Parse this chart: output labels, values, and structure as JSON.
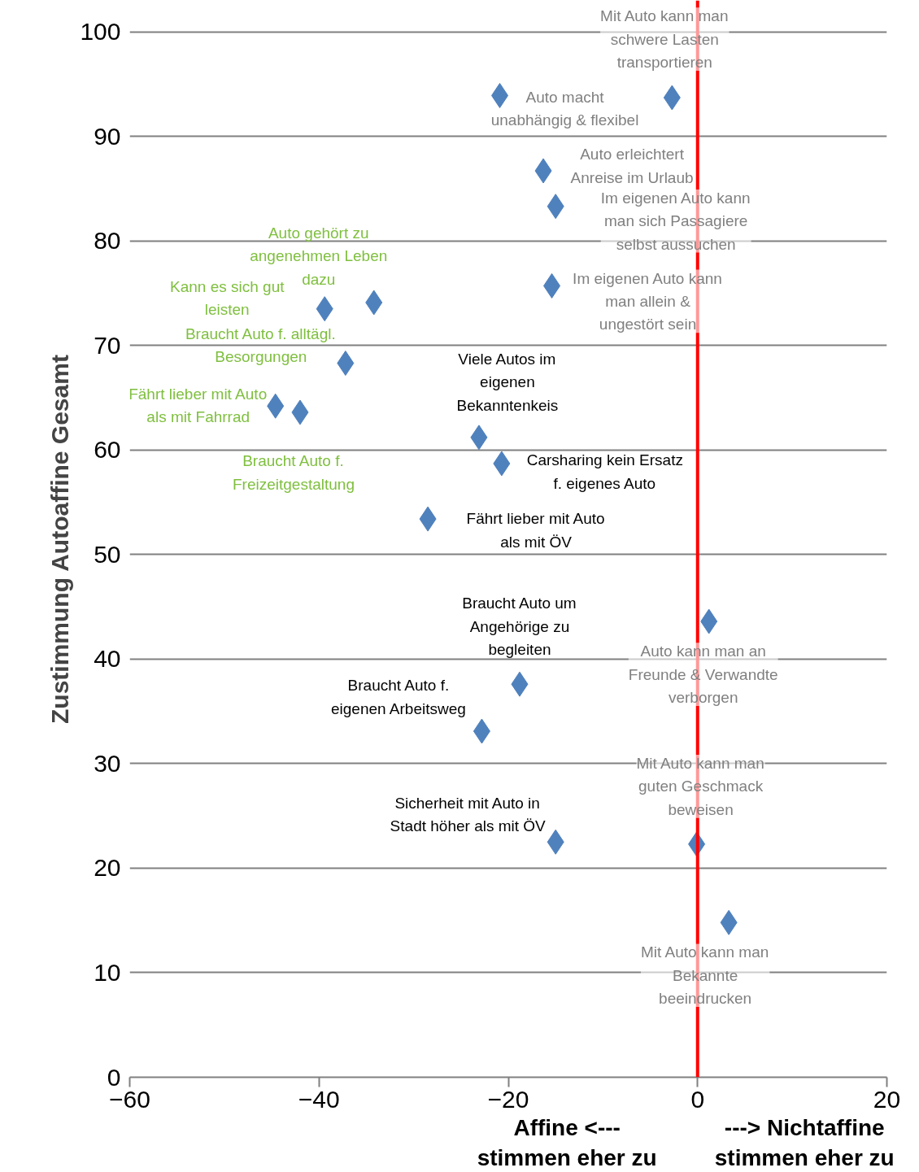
{
  "chart_data": {
    "type": "scatter",
    "ylabel": "Zustimmung Autoaffine Gesamt",
    "x": [
      -20.9,
      -2.7,
      -16.3,
      -15.0,
      -15.4,
      -34.2,
      -39.4,
      -37.2,
      -44.6,
      -42.0,
      -23.1,
      -20.7,
      -28.5,
      1.2,
      -18.8,
      -22.8,
      -15.0,
      -0.1,
      3.3
    ],
    "values": [
      93.9,
      93.7,
      86.7,
      83.3,
      75.7,
      74.1,
      73.5,
      68.3,
      64.2,
      63.6,
      61.2,
      58.7,
      53.4,
      43.6,
      37.6,
      33.1,
      22.5,
      22.3,
      14.8
    ],
    "color": "#4f81bd",
    "marker": "diamond",
    "xlim": [
      -60,
      20
    ],
    "xticks": [
      -60,
      -40,
      -20,
      0,
      20
    ],
    "ylim": [
      0,
      103
    ],
    "yticks": [
      0,
      10,
      20,
      30,
      40,
      50,
      60,
      70,
      80,
      90,
      100
    ],
    "grid": "y",
    "ref_lines": [
      {
        "axis": "x",
        "value": 0,
        "label": null,
        "color": "#ff0000"
      }
    ],
    "annotations": [
      "Affine <---\nstimmen eher zu",
      "---> Nichtaffine\nstimmen eher zu",
      {
        "text": "Mit Auto kann man\nschwere Lasten\ntransportieren",
        "x": -2.7,
        "y": 93.7
      },
      {
        "text": "Auto macht\nunabhängig & flexibel",
        "x": -20.9,
        "y": 93.9
      },
      {
        "text": "Auto erleichtert\nAnreise im Urlaub",
        "x": -16.3,
        "y": 86.7
      },
      {
        "text": "Im eigenen Auto kann\nman sich Passagiere\nselbst aussuchen",
        "x": -15.0,
        "y": 83.3
      },
      {
        "text": "Im eigenen Auto kann\nman allein &\nungestört sein",
        "x": -15.4,
        "y": 75.7
      },
      {
        "text": "Auto gehört zu\nangenehmen Leben\ndazu",
        "x": -34.2,
        "y": 74.1
      },
      {
        "text": "Kann es sich gut\nleisten",
        "x": -39.4,
        "y": 73.5
      },
      {
        "text": "Braucht Auto f. alltägl.\nBesorgungen",
        "x": -37.2,
        "y": 68.3
      },
      {
        "text": "Fährt lieber mit Auto\nals mit Fahrrad",
        "x": -44.6,
        "y": 64.2
      },
      {
        "text": "Braucht Auto f.\nFreizeitgestaltung",
        "x": -42.0,
        "y": 63.6
      },
      {
        "text": "Viele Autos im\neigenen\nBekanntenkeis",
        "x": -23.1,
        "y": 61.2
      },
      {
        "text": "Carsharing kein Ersatz\nf. eigenes Auto",
        "x": -20.7,
        "y": 58.7
      },
      {
        "text": "Fährt lieber mit Auto\nals mit ÖV",
        "x": -28.5,
        "y": 53.4
      },
      {
        "text": "Braucht Auto um\nAngehörige zu\nbegleiten",
        "x": -18.8,
        "y": 37.6
      },
      {
        "text": "Braucht Auto f.\neigenen Arbeitsweg",
        "x": -22.8,
        "y": 33.1
      },
      {
        "text": "Sicherheit mit Auto in\nStadt höher als mit ÖV",
        "x": -15.0,
        "y": 22.5
      },
      {
        "text": "Auto kann man an\nFreunde & Verwandte\nverborgen",
        "x": 1.2,
        "y": 43.6
      },
      {
        "text": "Mit Auto kann man\nguten Geschmack\nbeweisen",
        "x": -0.1,
        "y": 22.3
      },
      {
        "text": "Mit Auto kann man\nBekannte\nbeeindrucken",
        "x": 3.3,
        "y": 14.8
      }
    ]
  }
}
